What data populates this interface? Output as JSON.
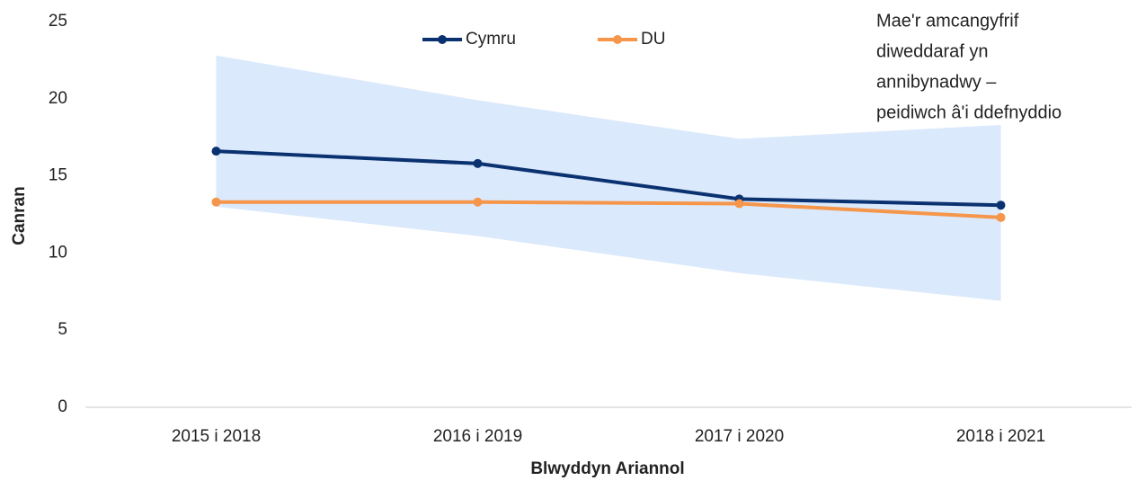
{
  "chart_data": {
    "type": "line",
    "categories": [
      "2015 i 2018",
      "2016 i 2019",
      "2017 i 2020",
      "2018 i 2021"
    ],
    "series": [
      {
        "name": "Cymru",
        "color": "#0b3270",
        "values": [
          16.6,
          15.8,
          13.5,
          13.1
        ]
      },
      {
        "name": "DU",
        "color": "#f5964a",
        "values": [
          13.3,
          13.3,
          13.2,
          12.3
        ]
      }
    ],
    "band": {
      "color": "#dbe9fc",
      "upper": [
        22.8,
        19.9,
        17.4,
        18.3
      ],
      "lower": [
        13.0,
        11.1,
        8.7,
        6.9
      ]
    },
    "ylim": [
      0,
      25
    ],
    "yticks": [
      0,
      5,
      10,
      15,
      20,
      25
    ],
    "y_label": "Canran",
    "x_label": "Blwyddyn Ariannol",
    "annotation": [
      "Mae'r amcangyfrif",
      "diweddaraf yn",
      "annibynadwy –",
      "peidiwch â'i ddefnyddio"
    ],
    "legend": "top"
  }
}
